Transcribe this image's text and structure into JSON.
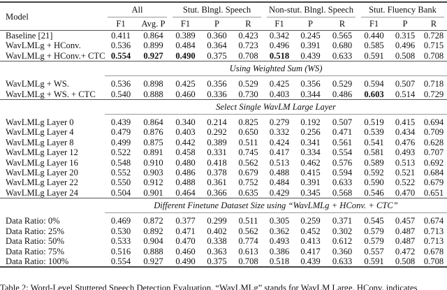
{
  "header": {
    "model": "Model",
    "groups": [
      "All",
      "Stut. Blngl. Speech",
      "Non-stut. Blngl. Speech",
      "Stut. Fluency Bank"
    ],
    "subcols": [
      "F1",
      "Avg. P",
      "F1",
      "P",
      "R",
      "F1",
      "P",
      "R",
      "F1",
      "P",
      "R"
    ]
  },
  "sections": [
    {
      "title": "",
      "rows": [
        {
          "model": "Baseline [21]",
          "values": [
            "0.411",
            "0.864",
            "0.389",
            "0.360",
            "0.423",
            "0.342",
            "0.245",
            "0.565",
            "0.440",
            "0.315",
            "0.728"
          ],
          "bold": []
        },
        {
          "model": "WavLMLg + HConv.",
          "values": [
            "0.536",
            "0.899",
            "0.484",
            "0.364",
            "0.723",
            "0.496",
            "0.391",
            "0.680",
            "0.585",
            "0.496",
            "0.715"
          ],
          "bold": []
        },
        {
          "model": "WavLMLg + HConv.+ CTC",
          "values": [
            "0.554",
            "0.927",
            "0.490",
            "0.375",
            "0.708",
            "0.518",
            "0.439",
            "0.633",
            "0.591",
            "0.508",
            "0.708"
          ],
          "bold": [
            0,
            1,
            2,
            5
          ]
        }
      ]
    },
    {
      "title": "Using Weighted Sum (WS)",
      "rows": [
        {
          "model": "WavLMLg + WS.",
          "values": [
            "0.536",
            "0.898",
            "0.425",
            "0.356",
            "0.529",
            "0.425",
            "0.356",
            "0.529",
            "0.594",
            "0.507",
            "0.718"
          ],
          "bold": []
        },
        {
          "model": "WavLMLg + WS. + CTC",
          "values": [
            "0.540",
            "0.888",
            "0.460",
            "0.336",
            "0.730",
            "0.403",
            "0.344",
            "0.486",
            "0.603",
            "0.514",
            "0.729"
          ],
          "bold": [
            8
          ]
        }
      ]
    },
    {
      "title": "Select Single WavLM Large Layer",
      "rows": [
        {
          "model": "WavLMLg Layer 0",
          "values": [
            "0.439",
            "0.864",
            "0.340",
            "0.214",
            "0.825",
            "0.279",
            "0.192",
            "0.507",
            "0.519",
            "0.415",
            "0.694"
          ],
          "bold": []
        },
        {
          "model": "WavLMLg Layer 4",
          "values": [
            "0.479",
            "0.876",
            "0.403",
            "0.292",
            "0.650",
            "0.332",
            "0.256",
            "0.471",
            "0.539",
            "0.434",
            "0.709"
          ],
          "bold": []
        },
        {
          "model": "WavLMLg Layer 8",
          "values": [
            "0.499",
            "0.875",
            "0.442",
            "0.389",
            "0.511",
            "0.424",
            "0.341",
            "0.561",
            "0.541",
            "0.476",
            "0.628"
          ],
          "bold": []
        },
        {
          "model": "WavLMLg Layer 12",
          "values": [
            "0.522",
            "0.891",
            "0.458",
            "0.331",
            "0.745",
            "0.417",
            "0.334",
            "0.554",
            "0.581",
            "0.493",
            "0.707"
          ],
          "bold": []
        },
        {
          "model": "WavLMLg Layer 16",
          "values": [
            "0.548",
            "0.910",
            "0.480",
            "0.418",
            "0.562",
            "0.513",
            "0.462",
            "0.576",
            "0.589",
            "0.513",
            "0.692"
          ],
          "bold": []
        },
        {
          "model": "WavLMLg Layer 20",
          "values": [
            "0.552",
            "0.903",
            "0.486",
            "0.378",
            "0.679",
            "0.488",
            "0.415",
            "0.594",
            "0.592",
            "0.521",
            "0.684"
          ],
          "bold": []
        },
        {
          "model": "WavLMLg Layer 22",
          "values": [
            "0.550",
            "0.912",
            "0.488",
            "0.361",
            "0.752",
            "0.484",
            "0.391",
            "0.633",
            "0.590",
            "0.522",
            "0.679"
          ],
          "bold": []
        },
        {
          "model": "WavLMLg Layer 24",
          "values": [
            "0.504",
            "0.901",
            "0.464",
            "0.366",
            "0.635",
            "0.429",
            "0.345",
            "0.568",
            "0.546",
            "0.470",
            "0.651"
          ],
          "bold": []
        }
      ]
    },
    {
      "title": "Different Finetune Dataset Size using “WavLMLg + HConv. + CTC”",
      "rows": [
        {
          "model": "Data Ratio: 0%",
          "values": [
            "0.469",
            "0.872",
            "0.377",
            "0.299",
            "0.511",
            "0.305",
            "0.259",
            "0.371",
            "0.545",
            "0.457",
            "0.674"
          ],
          "bold": []
        },
        {
          "model": "Data Ratio: 25%",
          "values": [
            "0.530",
            "0.892",
            "0.471",
            "0.402",
            "0.562",
            "0.362",
            "0.452",
            "0.302",
            "0.579",
            "0.487",
            "0.713"
          ],
          "bold": []
        },
        {
          "model": "Data Ratio: 50%",
          "values": [
            "0.533",
            "0.904",
            "0.470",
            "0.338",
            "0.774",
            "0.493",
            "0.413",
            "0.612",
            "0.579",
            "0.487",
            "0.713"
          ],
          "bold": []
        },
        {
          "model": "Data Ratio: 75%",
          "values": [
            "0.516",
            "0.888",
            "0.460",
            "0.363",
            "0.613",
            "0.386",
            "0.417",
            "0.360",
            "0.557",
            "0.472",
            "0.678"
          ],
          "bold": []
        },
        {
          "model": "Data Ratio: 100%",
          "values": [
            "0.554",
            "0.927",
            "0.490",
            "0.375",
            "0.708",
            "0.518",
            "0.439",
            "0.633",
            "0.591",
            "0.508",
            "0.708"
          ],
          "bold": []
        }
      ]
    }
  ],
  "caption": "Table 2: Word-Level Stuttered Speech Detection Evaluation. “WavLMLg” stands for WavLM Large. HConv. indicates"
}
